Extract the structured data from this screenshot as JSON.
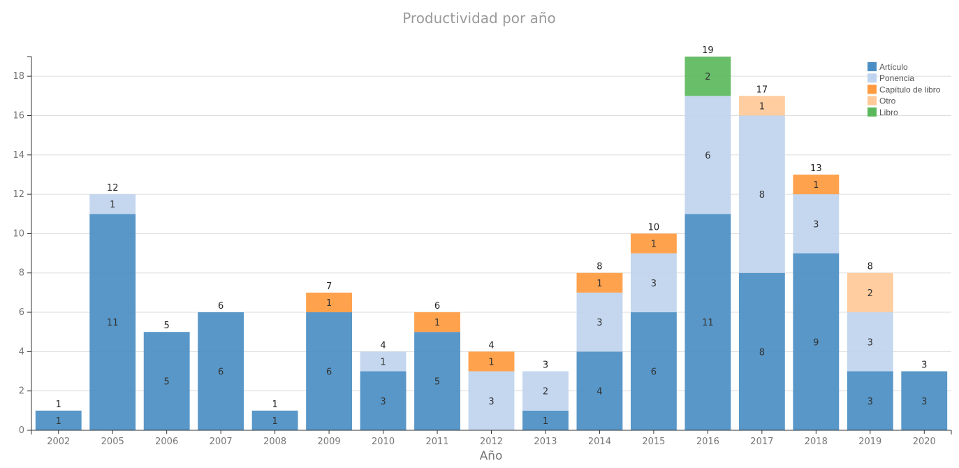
{
  "chart_data": {
    "type": "bar",
    "stacked": true,
    "title": "Productividad por año",
    "xlabel": "Año",
    "ylabel": "",
    "ylim": [
      0,
      19
    ],
    "yticks": [
      0,
      2,
      4,
      6,
      8,
      10,
      12,
      14,
      16,
      18
    ],
    "grid": true,
    "legend_position": "top-right",
    "categories": [
      "2002",
      "2005",
      "2006",
      "2007",
      "2008",
      "2009",
      "2010",
      "2011",
      "2012",
      "2013",
      "2014",
      "2015",
      "2016",
      "2017",
      "2018",
      "2019",
      "2020"
    ],
    "totals": [
      1,
      12,
      5,
      6,
      1,
      7,
      4,
      6,
      4,
      3,
      8,
      10,
      19,
      17,
      13,
      8,
      3
    ],
    "series": [
      {
        "name": "Artículo",
        "color": "#4a8ec3",
        "values": [
          1,
          11,
          5,
          6,
          1,
          6,
          3,
          5,
          0,
          1,
          4,
          6,
          11,
          8,
          9,
          3,
          3
        ]
      },
      {
        "name": "Ponencia",
        "color": "#bfd4ee",
        "values": [
          0,
          1,
          0,
          0,
          0,
          0,
          1,
          0,
          3,
          2,
          3,
          3,
          6,
          8,
          3,
          3,
          0
        ]
      },
      {
        "name": "Capítulo de libro",
        "color": "#ff9a3f",
        "values": [
          0,
          0,
          0,
          0,
          0,
          1,
          0,
          1,
          1,
          0,
          1,
          1,
          0,
          0,
          1,
          0,
          0
        ]
      },
      {
        "name": "Otro",
        "color": "#ffc998",
        "values": [
          0,
          0,
          0,
          0,
          0,
          0,
          0,
          0,
          0,
          0,
          0,
          0,
          0,
          1,
          0,
          2,
          0
        ]
      },
      {
        "name": "Libro",
        "color": "#5cb85c",
        "values": [
          0,
          0,
          0,
          0,
          0,
          0,
          0,
          0,
          0,
          0,
          0,
          0,
          2,
          0,
          0,
          0,
          0
        ]
      }
    ]
  }
}
